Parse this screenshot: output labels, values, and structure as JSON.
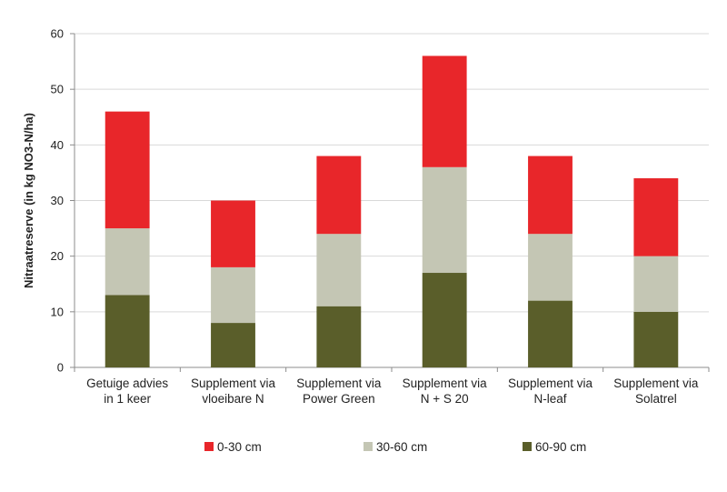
{
  "chart_data": {
    "type": "bar",
    "stacked": true,
    "categories": [
      [
        "Getuige advies",
        "in 1 keer"
      ],
      [
        "Supplement via",
        "vloeibare N"
      ],
      [
        "Supplement via",
        "Power Green"
      ],
      [
        "Supplement via",
        "N + S 20"
      ],
      [
        "Supplement via",
        "N-leaf"
      ],
      [
        "Supplement via",
        "Solatrel"
      ]
    ],
    "series": [
      {
        "name": "60-90 cm",
        "color": "#5a5e2a",
        "values": [
          13,
          8,
          11,
          17,
          12,
          10
        ]
      },
      {
        "name": "30-60 cm",
        "color": "#c4c6b4",
        "values": [
          12,
          10,
          13,
          19,
          12,
          10
        ]
      },
      {
        "name": "0-30 cm",
        "color": "#e8262a",
        "values": [
          21,
          12,
          14,
          20,
          14,
          14
        ]
      }
    ],
    "legend_order": [
      "0-30 cm",
      "30-60 cm",
      "60-90 cm"
    ],
    "ylabel": "Nitraatreserve (in kg NO3-N/ha)",
    "ylim": [
      0,
      60
    ],
    "yticks": [
      0,
      10,
      20,
      30,
      40,
      50,
      60
    ],
    "grid": true,
    "legend_position": "bottom"
  }
}
